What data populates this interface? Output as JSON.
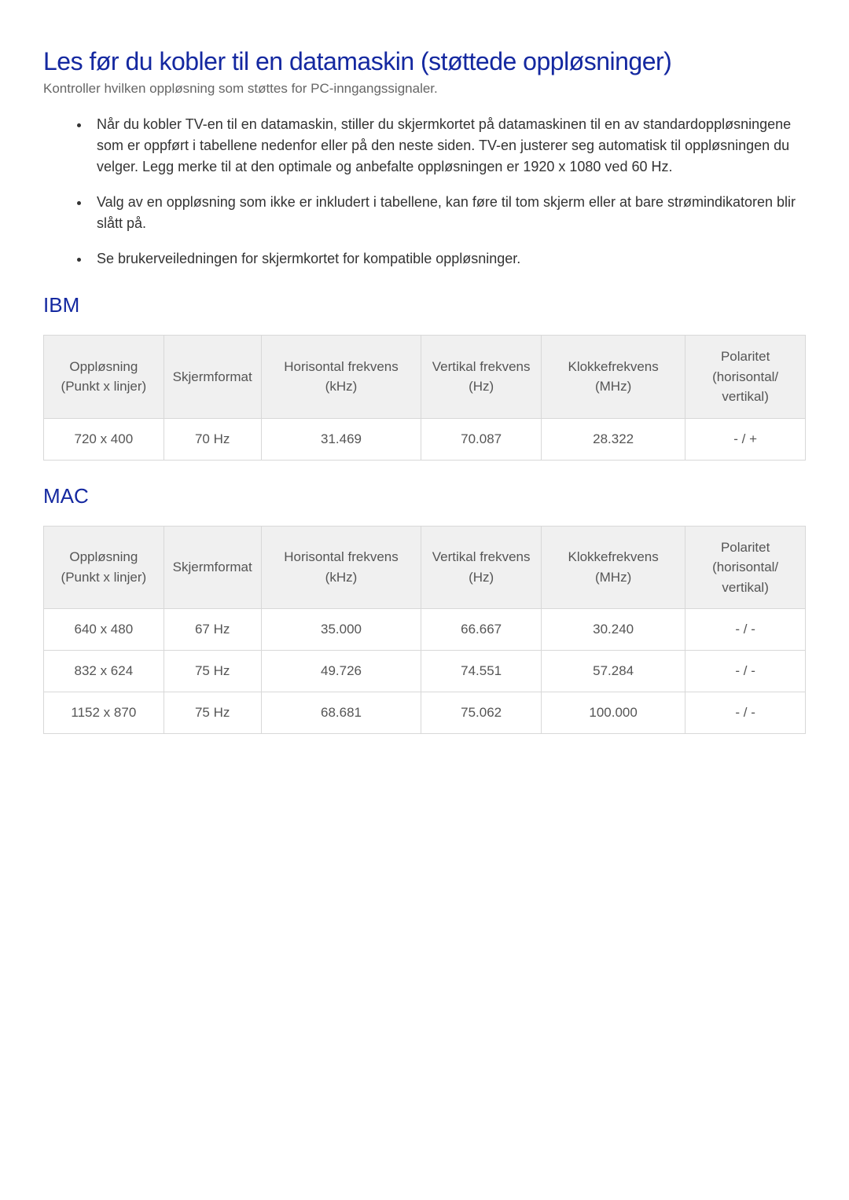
{
  "page": {
    "title": "Les før du kobler til en datamaskin (støttede oppløsninger)",
    "subtitle": "Kontroller hvilken oppløsning som støttes for PC-inngangssignaler.",
    "bullets": [
      "Når du kobler TV-en til en datamaskin, stiller du skjermkortet på datamaskinen til en av standardoppløsningene som er oppført i tabellene nedenfor eller på den neste siden. TV-en justerer seg automatisk til oppløsningen du velger. Legg merke til at den optimale og anbefalte oppløsningen er 1920 x 1080 ved 60 Hz.",
      "Valg av en oppløsning som ikke er inkludert i tabellene, kan føre til tom skjerm eller at bare strømindikatoren blir slått på.",
      "Se brukerveiledningen for skjermkortet for kompatible oppløsninger."
    ]
  },
  "colors": {
    "heading": "#1428a0",
    "body_text": "#333333",
    "muted_text": "#666666",
    "table_text": "#555555",
    "table_header_bg": "#f0f0f0",
    "table_border": "#d8d8d8",
    "background": "#ffffff"
  },
  "table_columns": [
    "Oppløsning\n(Punkt x linjer)",
    "Skjermformat",
    "Horisontal frekvens\n(kHz)",
    "Vertikal frekvens\n(Hz)",
    "Klokkefrekvens\n(MHz)",
    "Polaritet\n(horisontal/\nvertikal)"
  ],
  "sections": [
    {
      "heading": "IBM",
      "rows": [
        [
          "720 x 400",
          "70 Hz",
          "31.469",
          "70.087",
          "28.322",
          "- / +"
        ]
      ]
    },
    {
      "heading": "MAC",
      "rows": [
        [
          "640 x 480",
          "67 Hz",
          "35.000",
          "66.667",
          "30.240",
          "- / -"
        ],
        [
          "832 x 624",
          "75 Hz",
          "49.726",
          "74.551",
          "57.284",
          "- / -"
        ],
        [
          "1152 x 870",
          "75 Hz",
          "68.681",
          "75.062",
          "100.000",
          "- / -"
        ]
      ]
    }
  ]
}
